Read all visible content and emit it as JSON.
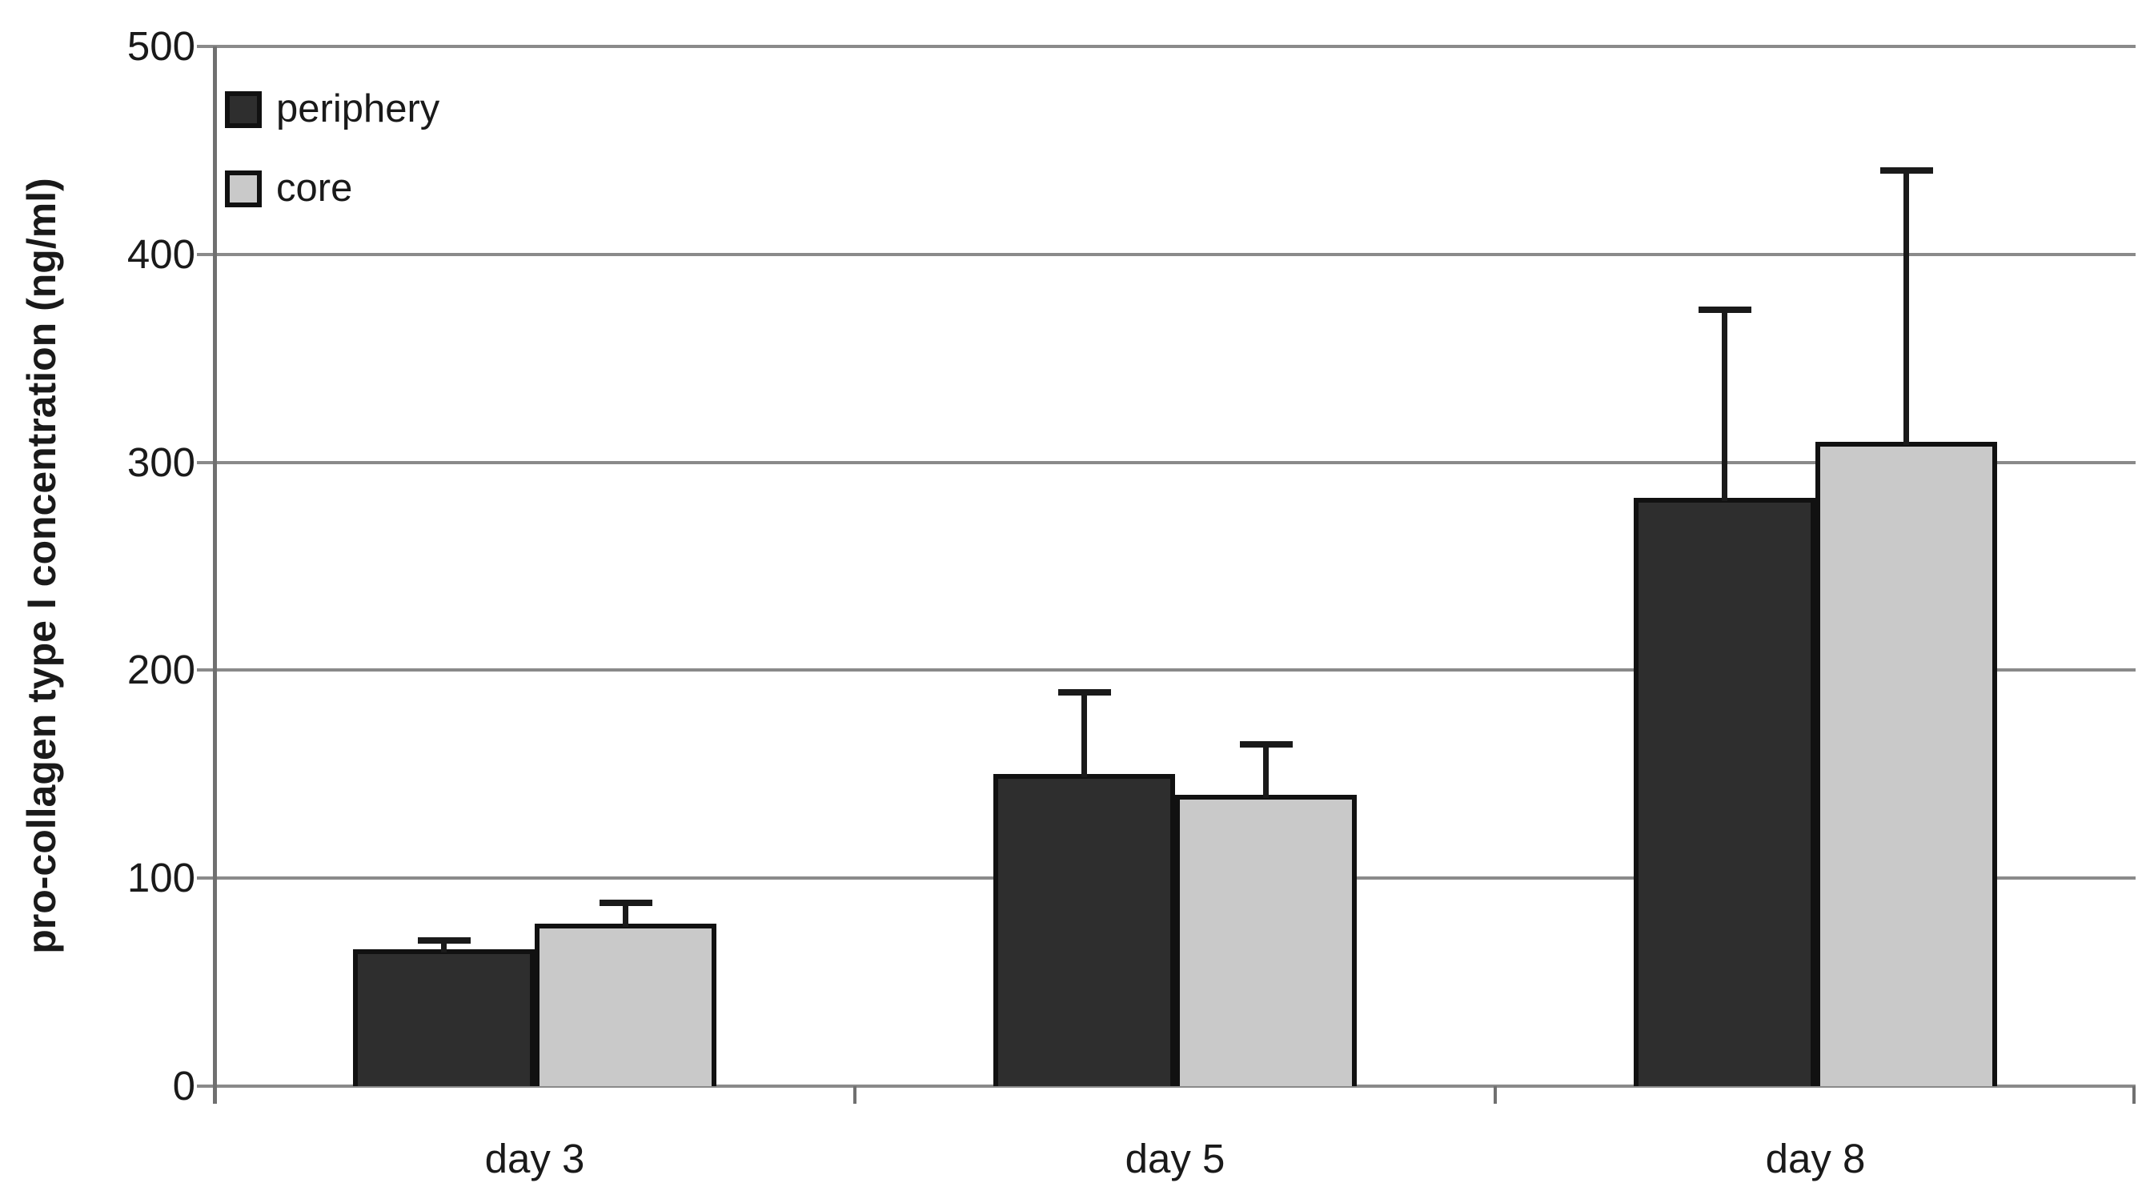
{
  "chart_data": {
    "type": "bar",
    "categories": [
      "day 3",
      "day 5",
      "day 8"
    ],
    "series": [
      {
        "name": "periphery",
        "values": [
          66,
          150,
          283
        ],
        "errors_plus": [
          5,
          40,
          91
        ],
        "color": "#2e2e2e"
      },
      {
        "name": "core",
        "values": [
          78,
          140,
          310
        ],
        "errors_plus": [
          11,
          25,
          131
        ],
        "color": "#c9c9c9"
      }
    ],
    "title": "",
    "xlabel": "",
    "ylabel": "pro-collagen type I concentration (ng/ml)",
    "ylim": [
      0,
      500
    ],
    "yticks": [
      0,
      100,
      200,
      300,
      400,
      500
    ],
    "grid": "horizontal",
    "legend_position": "top-left",
    "error_bars": "upper only",
    "colors": {
      "gridline": "#8a8a8a",
      "axis": "#707070",
      "bar_border": "#111111",
      "text": "#1a1a1a",
      "background": "#ffffff"
    }
  }
}
